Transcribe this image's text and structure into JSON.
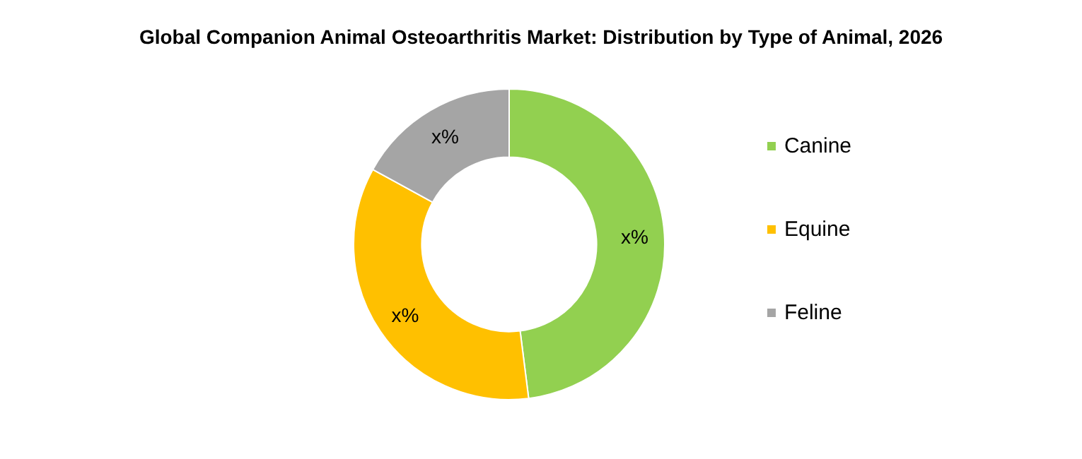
{
  "chart_data": {
    "type": "donut",
    "title": "Global Companion Animal Osteoarthritis Market: Distribution by Type of Animal, 2026",
    "categories": [
      "Canine",
      "Equine",
      "Feline"
    ],
    "values": [
      48,
      35,
      17
    ],
    "colors": [
      "#92d050",
      "#ffc000",
      "#a5a5a5"
    ],
    "value_labels": [
      "x%",
      "x%",
      "x%"
    ],
    "legend": "right"
  }
}
